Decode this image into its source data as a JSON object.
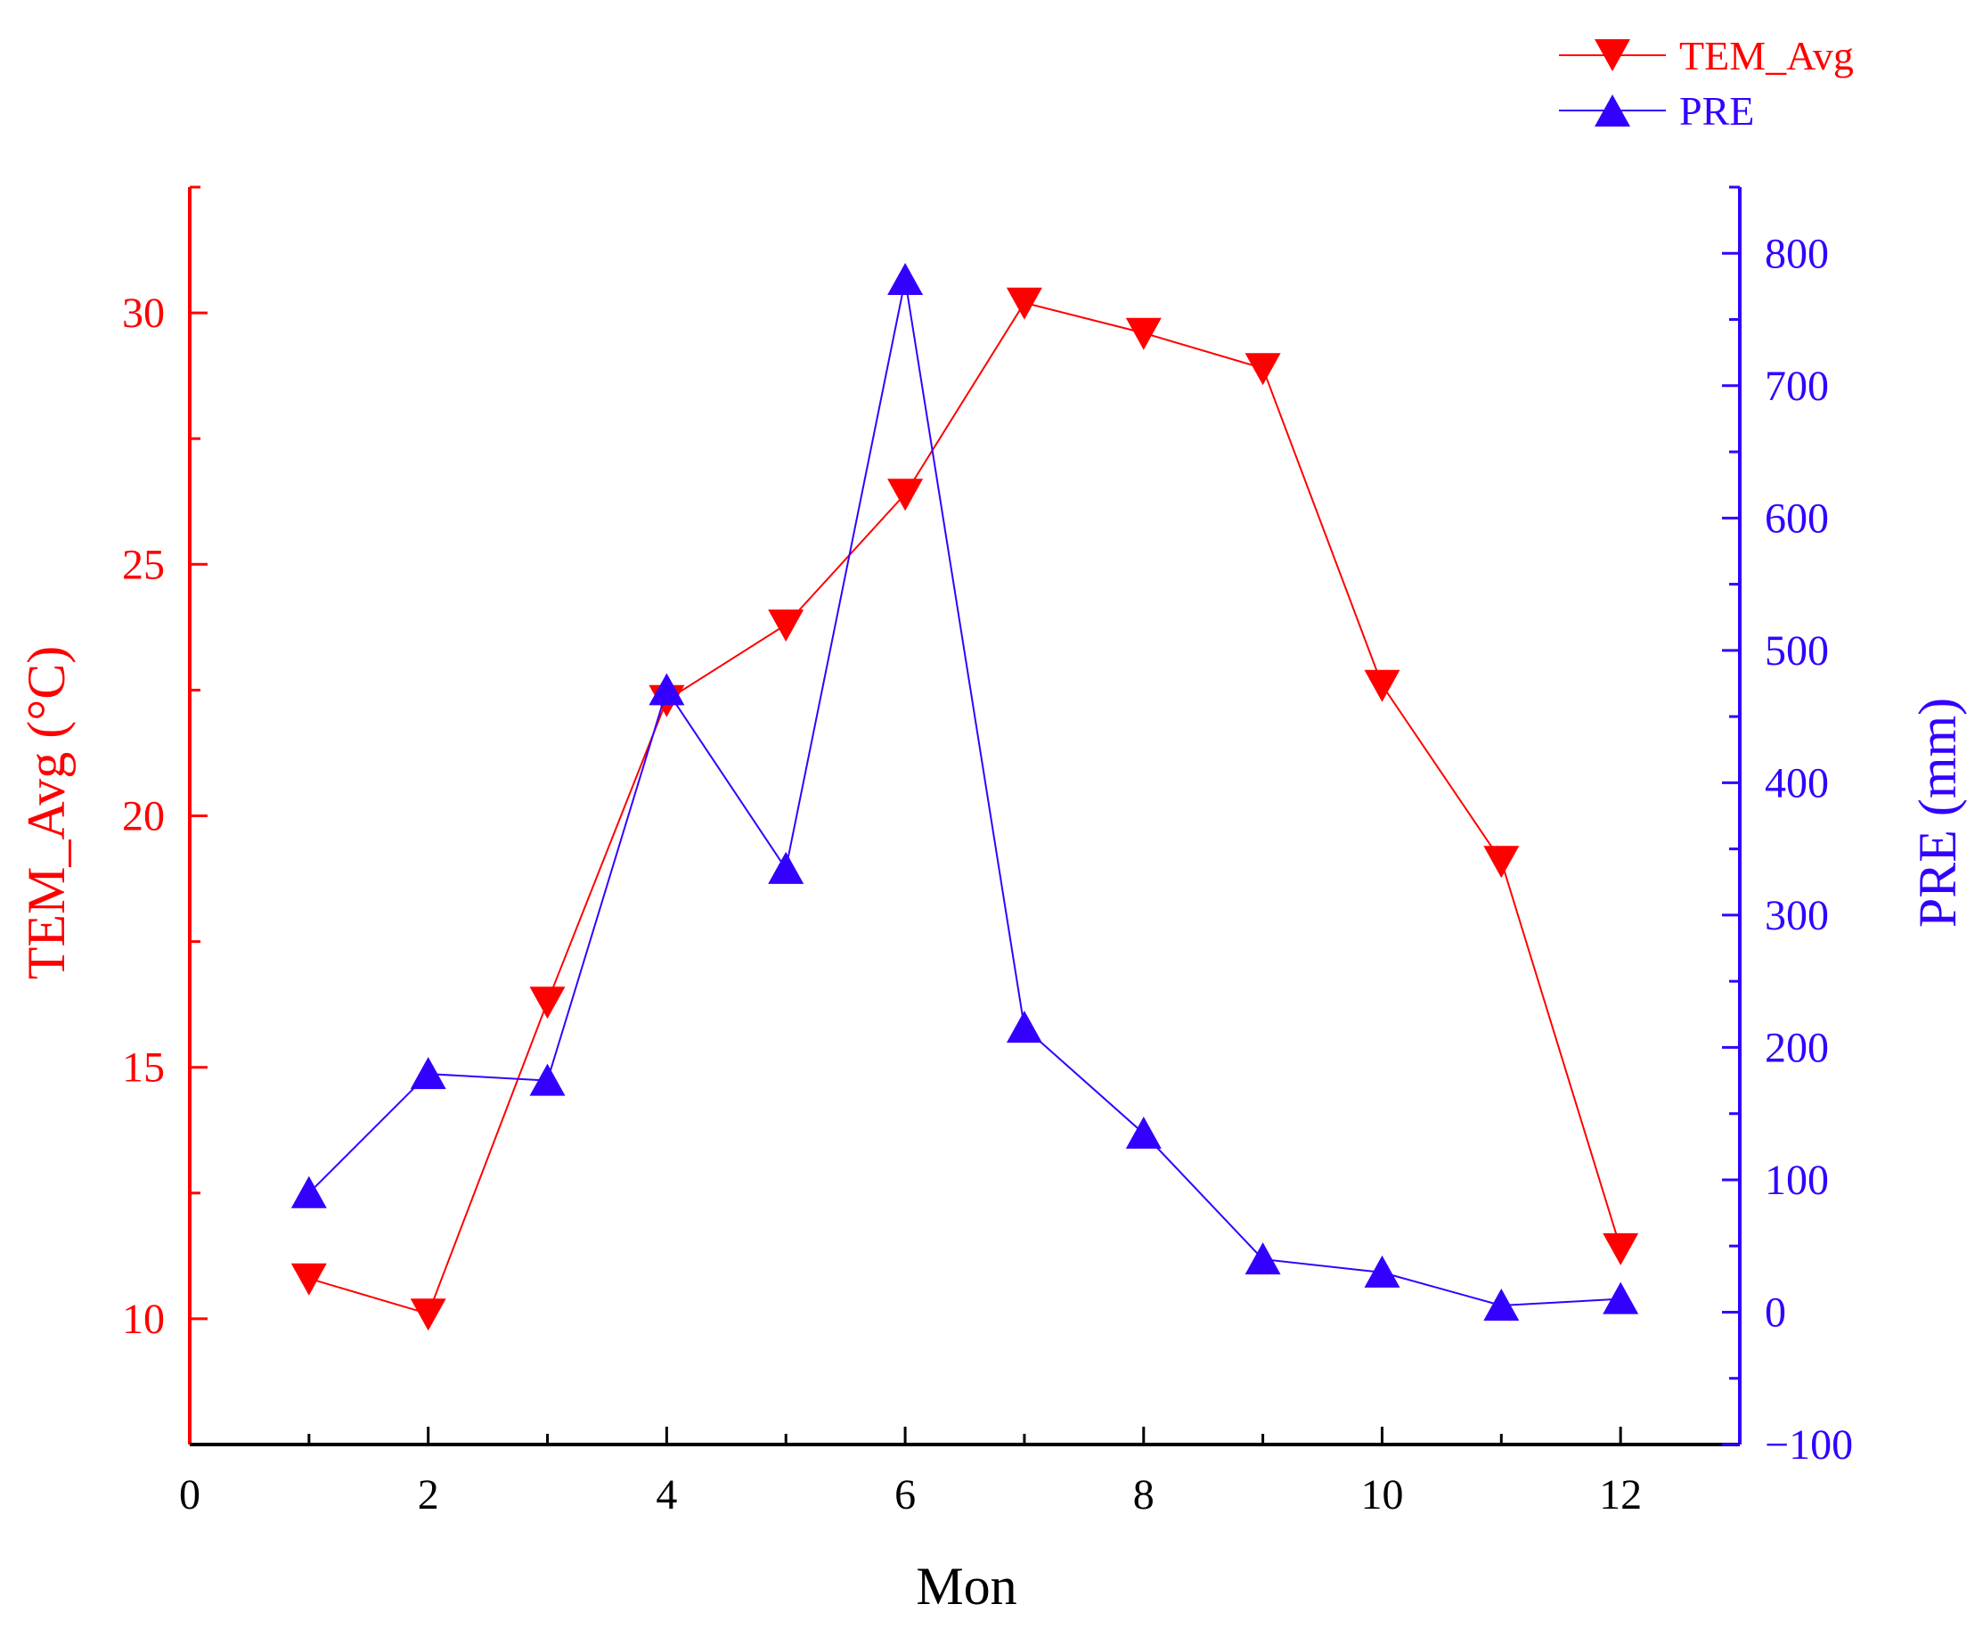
{
  "chart_data": {
    "type": "line",
    "title": "",
    "xlabel": "Mon",
    "xlim": [
      0,
      13
    ],
    "xticks": [
      0,
      2,
      4,
      6,
      8,
      10,
      12
    ],
    "x": [
      1,
      2,
      3,
      4,
      5,
      6,
      7,
      8,
      9,
      10,
      11,
      12
    ],
    "legend_position": "top-right",
    "grid": false,
    "left_axis": {
      "label": "TEM_Avg (°C)",
      "ylim": [
        7.5,
        32.5
      ],
      "ticks": [
        10,
        15,
        20,
        25,
        30
      ],
      "color": "#ff0000"
    },
    "right_axis": {
      "label": "PRE (mm)",
      "ylim": [
        -100,
        850
      ],
      "ticks": [
        -100,
        0,
        100,
        200,
        300,
        400,
        500,
        600,
        700,
        800
      ],
      "color": "#3300ff"
    },
    "series": [
      {
        "name": "TEM_Avg",
        "axis": "left",
        "marker": "triangle-down",
        "color": "#ff0000",
        "values": [
          10.8,
          10.1,
          16.3,
          22.3,
          23.8,
          26.4,
          30.2,
          29.6,
          28.9,
          22.6,
          19.1,
          11.4
        ]
      },
      {
        "name": "PRE",
        "axis": "right",
        "marker": "triangle-up",
        "color": "#3300ff",
        "values": [
          90,
          180,
          175,
          470,
          335,
          780,
          215,
          135,
          40,
          30,
          5,
          10
        ]
      }
    ]
  }
}
